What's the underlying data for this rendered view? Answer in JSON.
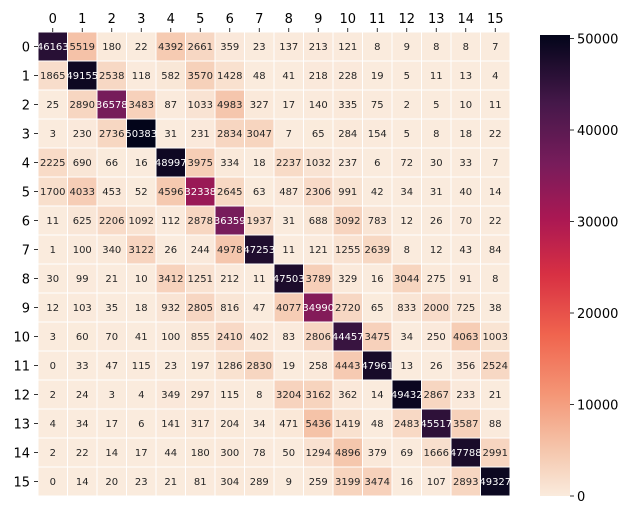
{
  "chart_data": {
    "type": "heatmap",
    "row_labels": [
      "0",
      "1",
      "2",
      "3",
      "4",
      "5",
      "6",
      "7",
      "8",
      "9",
      "10",
      "11",
      "12",
      "13",
      "14",
      "15"
    ],
    "col_labels": [
      "0",
      "1",
      "2",
      "3",
      "4",
      "5",
      "6",
      "7",
      "8",
      "9",
      "10",
      "11",
      "12",
      "13",
      "14",
      "15"
    ],
    "values": [
      [
        46163,
        5519,
        180,
        22,
        4392,
        2661,
        359,
        23,
        137,
        213,
        121,
        8,
        9,
        8,
        8,
        7
      ],
      [
        1865,
        49155,
        2538,
        118,
        582,
        3570,
        1428,
        48,
        41,
        218,
        228,
        19,
        5,
        11,
        13,
        4
      ],
      [
        25,
        2890,
        36578,
        3483,
        87,
        1033,
        4983,
        327,
        17,
        140,
        335,
        75,
        2,
        5,
        10,
        11
      ],
      [
        3,
        230,
        2736,
        50383,
        31,
        231,
        2834,
        3047,
        7,
        65,
        284,
        154,
        5,
        8,
        18,
        22
      ],
      [
        2225,
        690,
        66,
        16,
        48997,
        3975,
        334,
        18,
        2237,
        1032,
        237,
        6,
        72,
        30,
        33,
        7
      ],
      [
        1700,
        4033,
        453,
        52,
        4596,
        32338,
        2645,
        63,
        487,
        2306,
        991,
        42,
        34,
        31,
        40,
        14
      ],
      [
        11,
        625,
        2206,
        1092,
        112,
        2878,
        36359,
        1937,
        31,
        688,
        3092,
        783,
        12,
        26,
        70,
        22
      ],
      [
        1,
        100,
        340,
        3122,
        26,
        244,
        4978,
        47253,
        11,
        121,
        1255,
        2639,
        8,
        12,
        43,
        84
      ],
      [
        30,
        99,
        21,
        10,
        3412,
        1251,
        212,
        11,
        47503,
        3789,
        329,
        16,
        3044,
        275,
        91,
        8
      ],
      [
        12,
        103,
        35,
        18,
        932,
        2805,
        816,
        47,
        4077,
        34990,
        2720,
        65,
        833,
        2000,
        725,
        38
      ],
      [
        3,
        60,
        70,
        41,
        100,
        855,
        2410,
        402,
        83,
        2806,
        44457,
        3475,
        34,
        250,
        4063,
        1003
      ],
      [
        0,
        33,
        47,
        115,
        23,
        197,
        1286,
        2830,
        19,
        258,
        4443,
        47961,
        13,
        26,
        356,
        2524
      ],
      [
        2,
        24,
        3,
        4,
        349,
        297,
        115,
        8,
        3204,
        3162,
        362,
        14,
        49432,
        2867,
        233,
        21
      ],
      [
        4,
        34,
        17,
        6,
        141,
        317,
        204,
        34,
        471,
        5436,
        1419,
        48,
        2483,
        45517,
        3587,
        88
      ],
      [
        2,
        22,
        14,
        17,
        44,
        180,
        300,
        78,
        50,
        1294,
        4896,
        379,
        69,
        1666,
        47788,
        2991
      ],
      [
        0,
        14,
        20,
        23,
        21,
        81,
        304,
        289,
        9,
        259,
        3199,
        3474,
        16,
        107,
        2893,
        49327
      ]
    ],
    "colorbar": {
      "min": 0,
      "max": 50383,
      "ticks": [
        0,
        10000,
        20000,
        30000,
        40000,
        50000
      ],
      "tick_labels": [
        "0",
        "10000",
        "20000",
        "30000",
        "40000",
        "50000"
      ]
    },
    "colormap": "rocket_r",
    "x_tick_position": "top",
    "cell_annotations": true
  }
}
